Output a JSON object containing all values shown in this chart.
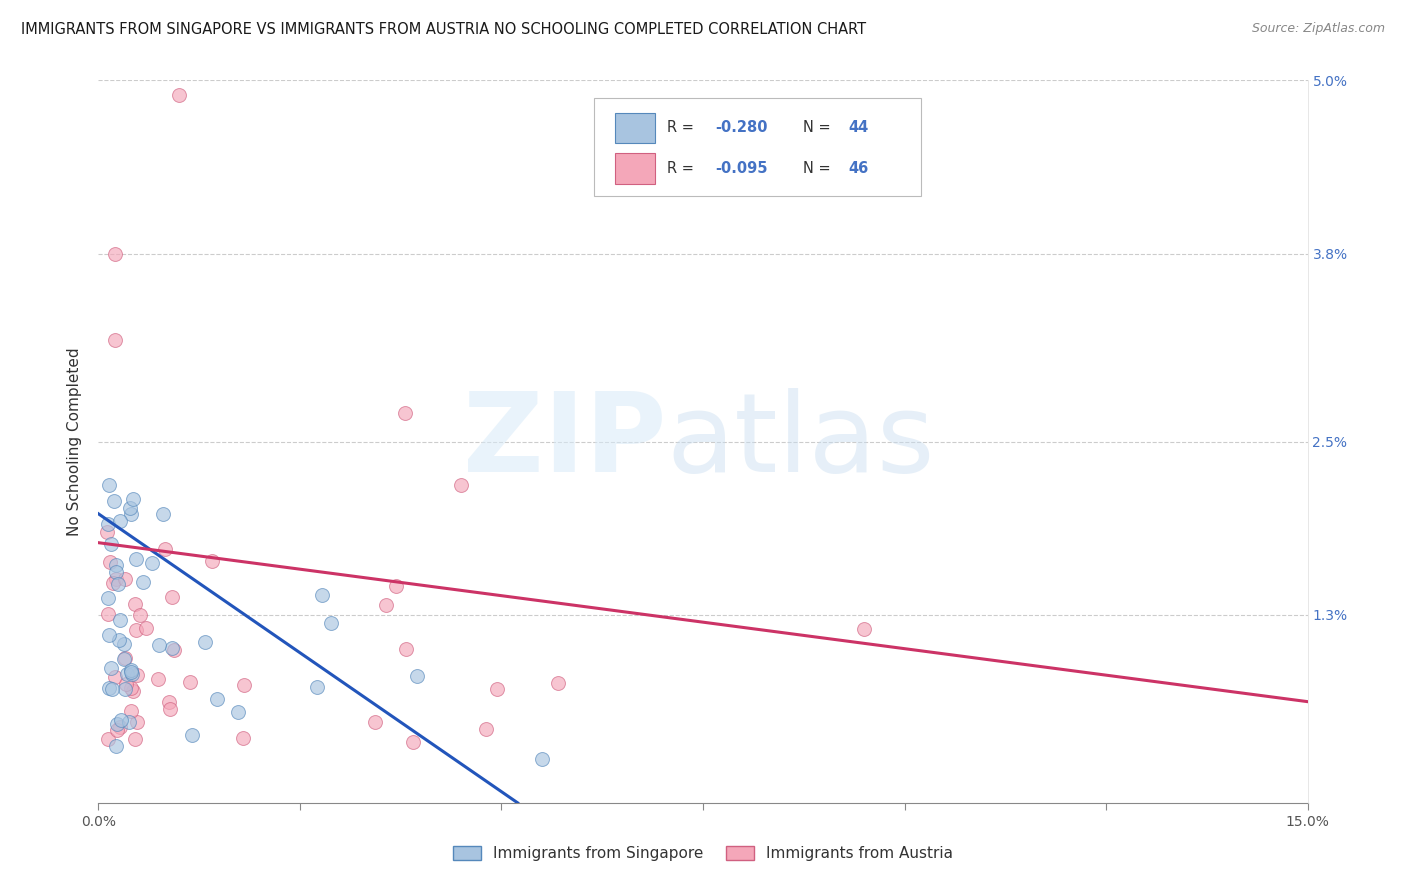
{
  "title": "IMMIGRANTS FROM SINGAPORE VS IMMIGRANTS FROM AUSTRIA NO SCHOOLING COMPLETED CORRELATION CHART",
  "source": "Source: ZipAtlas.com",
  "ylabel": "No Schooling Completed",
  "xlim": [
    0,
    0.15
  ],
  "ylim": [
    0,
    0.05
  ],
  "xtick_pos": [
    0.0,
    0.025,
    0.05,
    0.075,
    0.1,
    0.125,
    0.15
  ],
  "xticklabels": [
    "0.0%",
    "",
    "",
    "",
    "",
    "",
    "15.0%"
  ],
  "ytick_pos": [
    0.0,
    0.013,
    0.025,
    0.038,
    0.05
  ],
  "right_ytick_pos": [
    0.013,
    0.025,
    0.038,
    0.05
  ],
  "right_ytick_labels": [
    "1.3%",
    "2.5%",
    "3.8%",
    "5.0%"
  ],
  "series1_label": "Immigrants from Singapore",
  "series2_label": "Immigrants from Austria",
  "series1_color": "#a8c4e0",
  "series2_color": "#f4a7b9",
  "series1_edge_color": "#5588bb",
  "series2_edge_color": "#d06080",
  "series1_line_color": "#2255bb",
  "series2_line_color": "#cc3366",
  "legend_text_color": "#4472c4",
  "grid_color": "#cccccc",
  "background_color": "#ffffff",
  "title_fontsize": 10.5,
  "axis_label_fontsize": 11,
  "tick_fontsize": 10,
  "marker_size": 100,
  "marker_alpha": 0.65,
  "line_width": 2.2
}
